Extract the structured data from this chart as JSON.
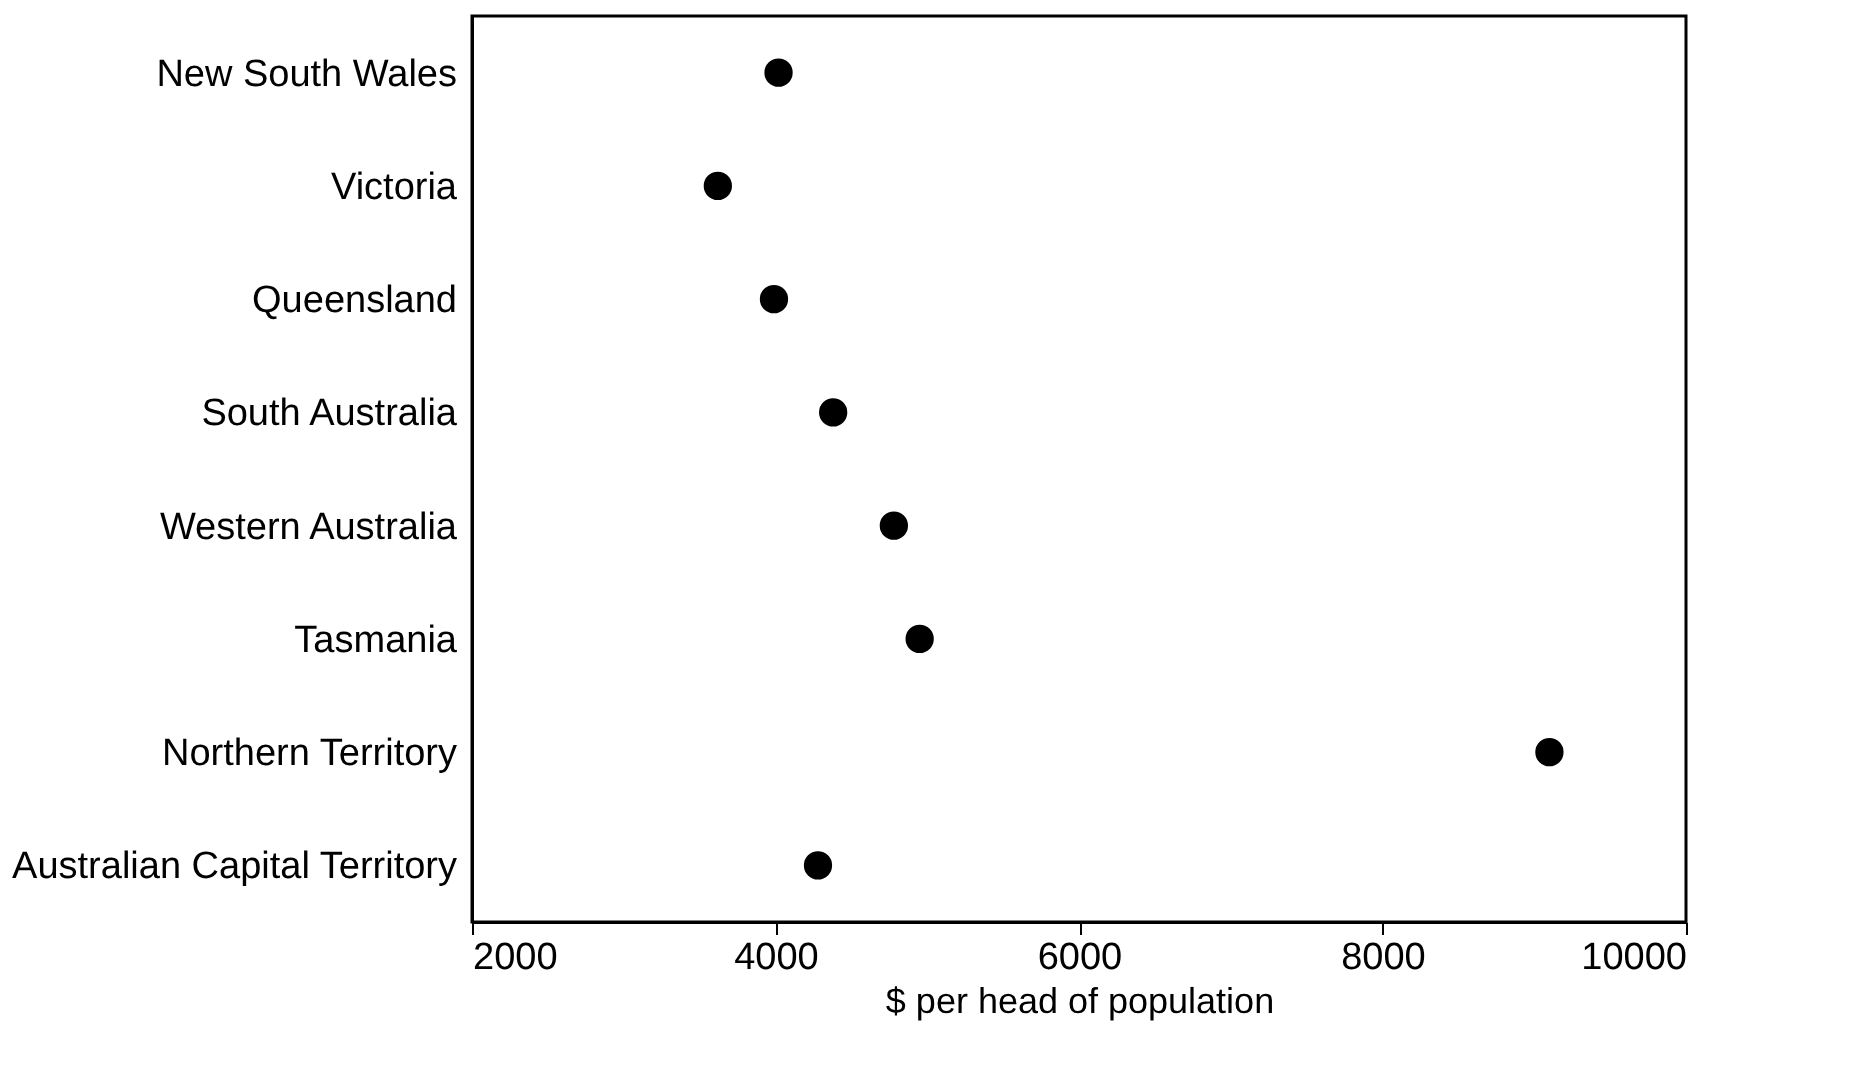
{
  "chart_data": {
    "type": "scatter",
    "orientation": "horizontal",
    "xlabel": "$ per head of population",
    "categories": [
      "New South Wales",
      "Victoria",
      "Queensland",
      "South Australia",
      "Western Australia",
      "Tasmania",
      "Northern Territory",
      "Australian Capital Territory"
    ],
    "values": [
      4020,
      3620,
      3990,
      4380,
      4780,
      4950,
      9100,
      4280
    ],
    "color": "#000000",
    "marker": "circle",
    "xlim": [
      2000,
      10000
    ],
    "xticks": [
      {
        "value": 2000,
        "label": "2000"
      },
      {
        "value": 4000,
        "label": "4000"
      },
      {
        "value": 6000,
        "label": "6000"
      },
      {
        "value": 8000,
        "label": "8000"
      },
      {
        "value": 10000,
        "label": "10000"
      }
    ],
    "grid": false
  }
}
